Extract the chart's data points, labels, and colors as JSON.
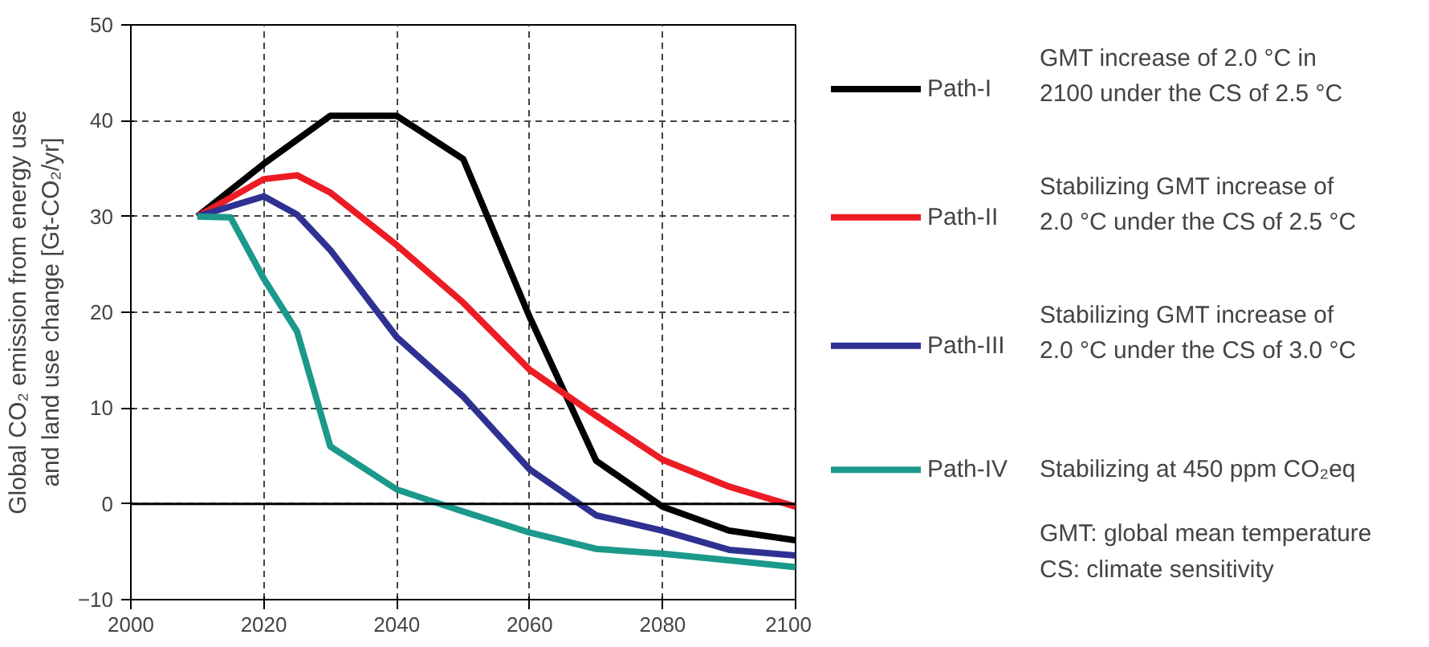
{
  "chart_data": {
    "type": "line",
    "ylabel": "Global CO₂ emission from energy use\nand land use change [Gt-CO₂/yr]",
    "xlim": [
      2000,
      2100
    ],
    "xticks": [
      2000,
      2020,
      2040,
      2060,
      2080,
      2100
    ],
    "ylim": [
      -10,
      50
    ],
    "yticks": [
      -10,
      0,
      10,
      20,
      30,
      40,
      50
    ],
    "grid": true,
    "legend": "right",
    "line_style": "solid",
    "marker": "none",
    "ref_lines": [
      {
        "axis": "y",
        "value": 0,
        "color": "#000000",
        "line_style": "solid"
      }
    ],
    "series": [
      {
        "name": "Path-I",
        "color": "#000000",
        "x": [
          2010,
          2020,
          2030,
          2040,
          2050,
          2060,
          2070,
          2080,
          2090,
          2100
        ],
        "values": [
          30,
          35.5,
          40.5,
          40.5,
          36,
          19.5,
          4.5,
          -0.3,
          -2.8,
          -3.8
        ]
      },
      {
        "name": "Path-II",
        "color": "#ed1c24",
        "x": [
          2010,
          2020,
          2025,
          2030,
          2040,
          2050,
          2060,
          2070,
          2080,
          2090,
          2100
        ],
        "values": [
          30,
          33.9,
          34.3,
          32.5,
          27,
          21,
          14,
          9.2,
          4.6,
          1.8,
          -0.3
        ]
      },
      {
        "name": "Path-III",
        "color": "#2e3192",
        "x": [
          2010,
          2020,
          2025,
          2030,
          2040,
          2050,
          2060,
          2070,
          2080,
          2090,
          2100
        ],
        "values": [
          30,
          32.1,
          30.2,
          26.5,
          17.4,
          11.2,
          3.6,
          -1.2,
          -2.8,
          -4.8,
          -5.4
        ]
      },
      {
        "name": "Path-IV",
        "color": "#1b998b",
        "x": [
          2010,
          2015,
          2020,
          2025,
          2030,
          2040,
          2050,
          2060,
          2070,
          2080,
          2090,
          2100
        ],
        "values": [
          30,
          29.9,
          23.5,
          18,
          6,
          1.5,
          -0.8,
          -3,
          -4.7,
          -5.2,
          -5.9,
          -6.6
        ]
      }
    ],
    "annotations": [
      "GMT increase of 2.0 °C in\n2100 under the CS of 2.5 °C",
      "Stabilizing GMT increase of\n2.0 °C under the CS of 2.5 °C",
      "Stabilizing GMT increase of\n2.0 °C under the CS of 3.0 °C",
      "Stabilizing at 450 ppm CO₂eq",
      "GMT: global mean temperature",
      "CS: climate sensitivity"
    ]
  }
}
